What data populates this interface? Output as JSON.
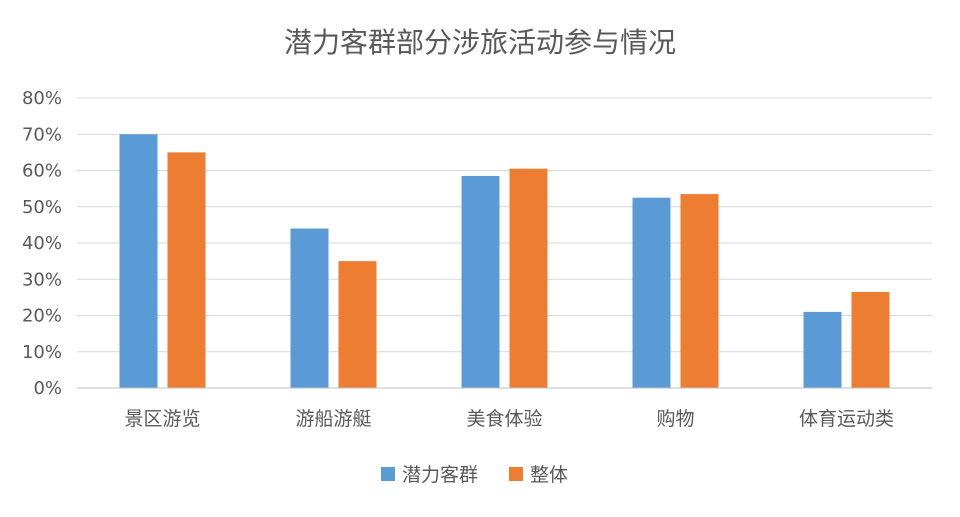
{
  "chart_data": {
    "type": "bar",
    "title": "潜力客群部分涉旅活动参与情况",
    "xlabel": "",
    "ylabel": "",
    "categories": [
      "景区游览",
      "游船游艇",
      "美食体验",
      "购物",
      "体育运动类"
    ],
    "series": [
      {
        "name": "潜力客群",
        "color": "#5B9BD5",
        "values": [
          0.7,
          0.44,
          0.585,
          0.525,
          0.21
        ]
      },
      {
        "name": "整体",
        "color": "#ED7D31",
        "values": [
          0.65,
          0.35,
          0.605,
          0.535,
          0.265
        ]
      }
    ],
    "ylim": [
      0,
      0.8
    ],
    "yticks": [
      0,
      0.1,
      0.2,
      0.3,
      0.4,
      0.5,
      0.6,
      0.7,
      0.8
    ],
    "ytick_labels": [
      "0%",
      "10%",
      "20%",
      "30%",
      "40%",
      "50%",
      "60%",
      "70%",
      "80%"
    ],
    "grid": true,
    "legend_position": "bottom"
  }
}
